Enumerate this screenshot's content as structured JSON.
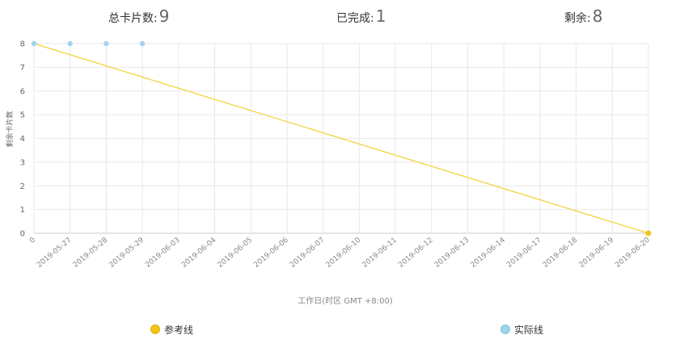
{
  "stats": {
    "total_label": "总卡片数:",
    "total_value": "9",
    "done_label": "已完成:",
    "done_value": "1",
    "remaining_label": "剩余:",
    "remaining_value": "8"
  },
  "chart_data": {
    "type": "line",
    "categories": [
      "0",
      "2019-05-27",
      "2019-05-28",
      "2019-05-29",
      "2019-06-03",
      "2019-06-04",
      "2019-06-05",
      "2019-06-06",
      "2019-06-07",
      "2019-06-10",
      "2019-06-11",
      "2019-06-12",
      "2019-06-13",
      "2019-06-14",
      "2019-06-17",
      "2019-06-18",
      "2019-06-19",
      "2019-06-20"
    ],
    "ylabel": "剩余卡片数",
    "xlabel": "工作日(时区 GMT +8:00)",
    "ylim": [
      0,
      8
    ],
    "yticks": [
      0,
      1,
      2,
      3,
      4,
      5,
      6,
      7,
      8
    ],
    "grid": true,
    "legend_position": "bottom",
    "series": [
      {
        "name": "参考线",
        "color": "#f5d33d",
        "marker_color": "#f0c419",
        "points": [
          {
            "x": "0",
            "y": 8
          },
          {
            "x": "2019-06-20",
            "y": 0
          }
        ]
      },
      {
        "name": "实际线",
        "color": "#9fd4ee",
        "marker_color": "#9fd4ee",
        "points": [
          {
            "x": "0",
            "y": 8
          },
          {
            "x": "2019-05-27",
            "y": 8
          },
          {
            "x": "2019-05-28",
            "y": 8
          },
          {
            "x": "2019-05-29",
            "y": 8
          }
        ]
      }
    ]
  }
}
